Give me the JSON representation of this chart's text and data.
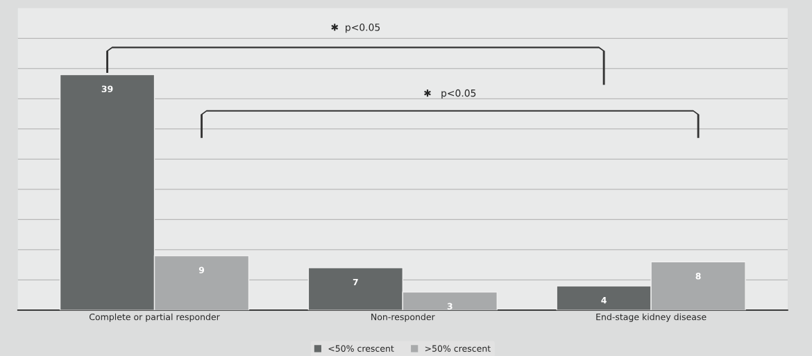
{
  "chart_data": {
    "type": "bar",
    "categories": [
      "Complete or partial responder",
      "Non-responder",
      "End-stage kidney disease"
    ],
    "series": [
      {
        "name": "<50% crescent",
        "color": "#646868",
        "values": [
          39,
          7,
          4
        ]
      },
      {
        "name": ">50% crescent",
        "color": "#a8aaab",
        "values": [
          9,
          3,
          8
        ]
      }
    ],
    "data_labels": true,
    "grid": "y",
    "legend": "bottom",
    "ylim": [
      0,
      50
    ],
    "yticks": [
      {
        "value": 0,
        "label": null
      },
      {
        "value": 5,
        "label": null
      },
      {
        "value": 10,
        "label": null
      },
      {
        "value": 15,
        "label": null
      },
      {
        "value": 20,
        "label": null
      },
      {
        "value": 25,
        "label": null
      },
      {
        "value": 30,
        "label": null
      },
      {
        "value": 35,
        "label": null
      },
      {
        "value": 40,
        "label": null
      },
      {
        "value": 45,
        "label": null
      }
    ],
    "tick_labels": "x",
    "annotations": [
      "✱  p<0.05",
      "✱   p<0.05"
    ]
  }
}
